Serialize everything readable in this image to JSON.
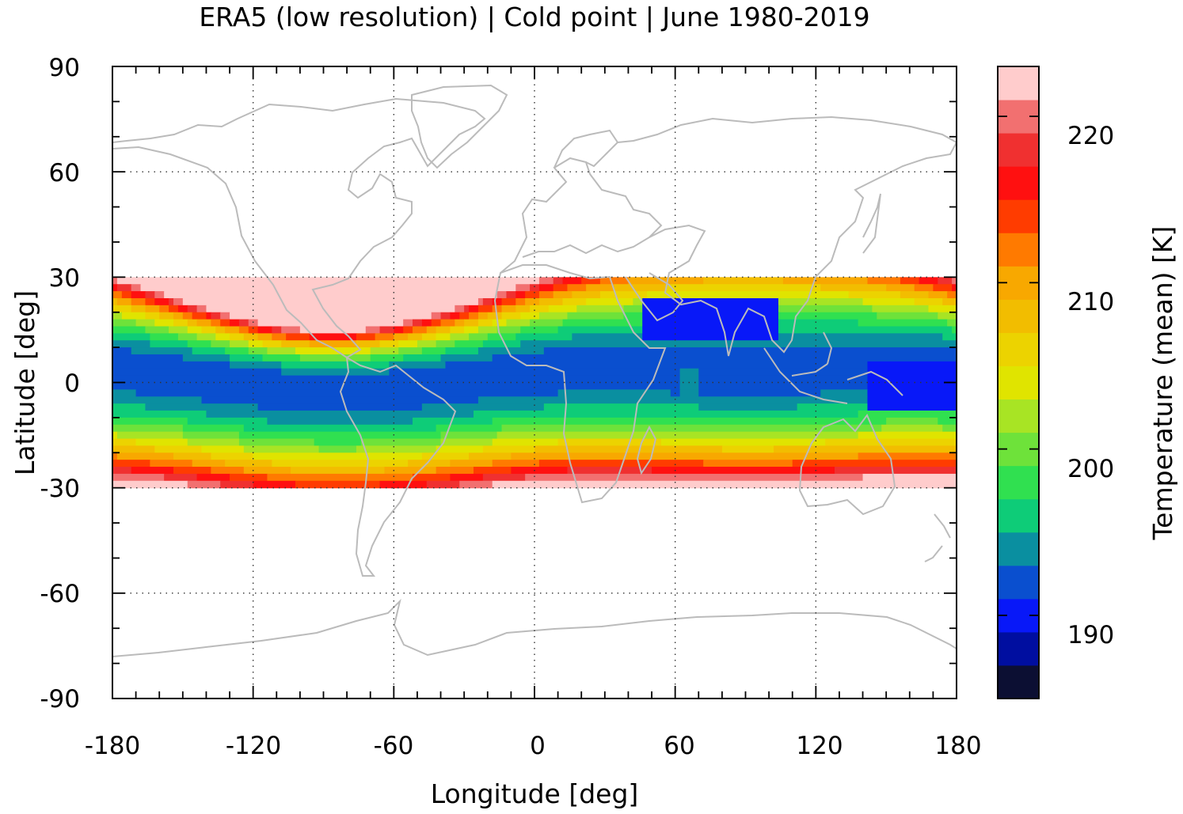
{
  "chart_data": {
    "type": "heatmap",
    "title": "ERA5 (low resolution) | Cold point | June 1980-2019",
    "xlabel": "Longitude [deg]",
    "ylabel": "Latitude [deg]",
    "colorbar_label": "Temperature (mean) [K]",
    "xlim": [
      -180,
      180
    ],
    "ylim": [
      -90,
      90
    ],
    "x_ticks": [
      -180,
      -120,
      -60,
      0,
      60,
      120,
      180
    ],
    "y_ticks": [
      90,
      60,
      30,
      0,
      -30,
      -60,
      -90
    ],
    "x_tick_labels": [
      "-180",
      "-120",
      "-60",
      "0",
      "60",
      "120",
      "180"
    ],
    "y_tick_labels": [
      "90",
      "60",
      "30",
      "0",
      "-30",
      "-60",
      "-90"
    ],
    "grid": true,
    "data_lat_range": [
      -30,
      30
    ],
    "colorbar": {
      "vmin": 185,
      "vmax": 223,
      "ticks": [
        190,
        200,
        210,
        220
      ],
      "tick_labels": [
        "190",
        "200",
        "210",
        "220"
      ],
      "levels": [
        {
          "from": 185,
          "to": 187,
          "color": "#0c0f33"
        },
        {
          "from": 187,
          "to": 189,
          "color": "#000ea0"
        },
        {
          "from": 189,
          "to": 191,
          "color": "#0818f8"
        },
        {
          "from": 191,
          "to": 193,
          "color": "#0a4fcf"
        },
        {
          "from": 193,
          "to": 195,
          "color": "#0a8fa0"
        },
        {
          "from": 195,
          "to": 197,
          "color": "#0ecc78"
        },
        {
          "from": 197,
          "to": 199,
          "color": "#30e050"
        },
        {
          "from": 199,
          "to": 201,
          "color": "#6ee23a"
        },
        {
          "from": 201,
          "to": 203,
          "color": "#a8e424"
        },
        {
          "from": 203,
          "to": 205,
          "color": "#e0e400"
        },
        {
          "from": 205,
          "to": 207,
          "color": "#ecd300"
        },
        {
          "from": 207,
          "to": 209,
          "color": "#f2bd00"
        },
        {
          "from": 209,
          "to": 211,
          "color": "#f8a800"
        },
        {
          "from": 211,
          "to": 213,
          "color": "#ff7a00"
        },
        {
          "from": 213,
          "to": 215,
          "color": "#ff3c00"
        },
        {
          "from": 215,
          "to": 217,
          "color": "#ff1010"
        },
        {
          "from": 217,
          "to": 219,
          "color": "#f03030"
        },
        {
          "from": 219,
          "to": 221,
          "color": "#f27070"
        },
        {
          "from": 221,
          "to": 223,
          "color": "#ffcccc"
        }
      ]
    },
    "field_regions": [
      {
        "name": "deep-cold-indian-ocean",
        "value": 190,
        "lon": [
          46,
          104
        ],
        "lat": [
          12,
          23
        ]
      },
      {
        "name": "deep-cold-west-pacific",
        "value": 190,
        "lon": [
          142,
          180
        ],
        "lat": [
          -8,
          6
        ]
      },
      {
        "name": "warm-spot-indian-ocean",
        "value": 194,
        "lon": [
          62,
          70
        ],
        "lat": [
          -3,
          3
        ]
      }
    ],
    "coastline_color": "#bbbbbb"
  }
}
